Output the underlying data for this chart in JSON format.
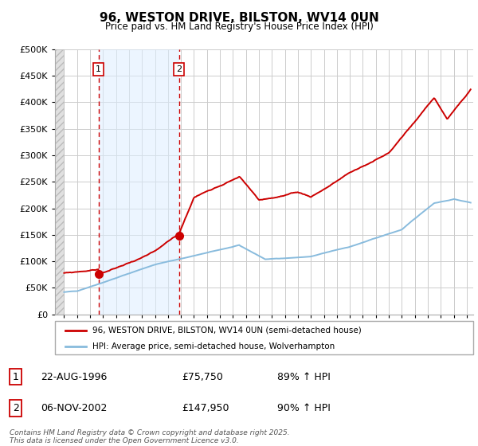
{
  "title": "96, WESTON DRIVE, BILSTON, WV14 0UN",
  "subtitle": "Price paid vs. HM Land Registry's House Price Index (HPI)",
  "legend_line1": "96, WESTON DRIVE, BILSTON, WV14 0UN (semi-detached house)",
  "legend_line2": "HPI: Average price, semi-detached house, Wolverhampton",
  "sale1_date": "22-AUG-1996",
  "sale1_price": "£75,750",
  "sale1_hpi": "89% ↑ HPI",
  "sale2_date": "06-NOV-2002",
  "sale2_price": "£147,950",
  "sale2_hpi": "90% ↑ HPI",
  "footer": "Contains HM Land Registry data © Crown copyright and database right 2025.\nThis data is licensed under the Open Government Licence v3.0.",
  "red_color": "#cc0000",
  "grid_color": "#cccccc",
  "bg_color": "#ffffff",
  "hatch_bg": "#d8d8d8",
  "shade_color": "#ddeeff",
  "ylim": [
    0,
    500000
  ],
  "yticks": [
    0,
    50000,
    100000,
    150000,
    200000,
    250000,
    300000,
    350000,
    400000,
    450000,
    500000
  ],
  "sale1_x": 1996.65,
  "sale1_y": 75750,
  "sale2_x": 2002.85,
  "sale2_y": 147950,
  "vline1_x": 1996.65,
  "vline2_x": 2002.85,
  "red_line_color": "#cc0000",
  "blue_line_color": "#88bbdd",
  "xmin": 1994.0,
  "xmax": 2025.5,
  "hatch_xstart": 1993.3,
  "hatch_xend": 1994.3
}
